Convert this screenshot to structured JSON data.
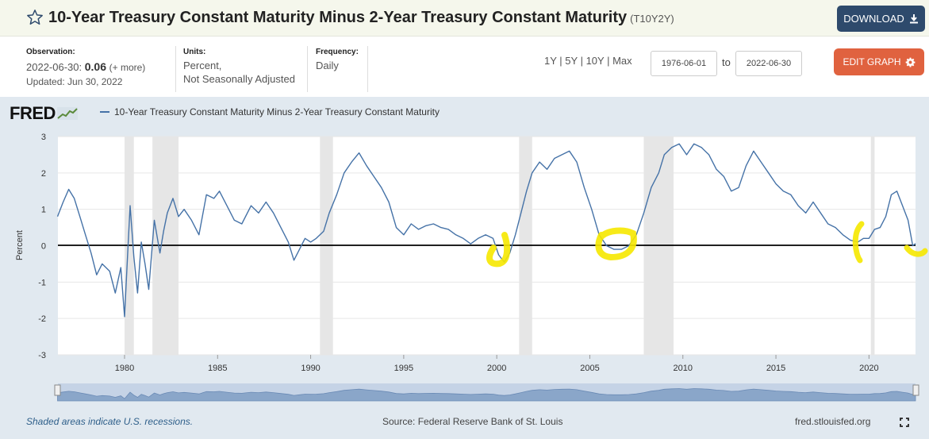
{
  "header": {
    "title": "10-Year Treasury Constant Maturity Minus 2-Year Treasury Constant Maturity",
    "series_code": "(T10Y2Y)",
    "download_label": "DOWNLOAD",
    "edit_label": "EDIT GRAPH"
  },
  "meta": {
    "observation_label": "Observation:",
    "observation_date": "2022-06-30:",
    "observation_value": "0.06",
    "more_link": "(+ more)",
    "updated": "Updated: Jun 30, 2022",
    "units_label": "Units:",
    "units_line1": "Percent,",
    "units_line2": "Not Seasonally Adjusted",
    "frequency_label": "Frequency:",
    "frequency_value": "Daily"
  },
  "range": {
    "buttons": [
      "1Y",
      "5Y",
      "10Y",
      "Max"
    ],
    "start": "1976-06-01",
    "to": "to",
    "end": "2022-06-30"
  },
  "footer": {
    "note": "Shaded areas indicate U.S. recessions.",
    "source": "Source: Federal Reserve Bank of St. Louis",
    "site": "fred.stlouisfed.org"
  },
  "logo": "FRED",
  "colors": {
    "line": "#4572a7",
    "recession": "#e6e6e6",
    "highlight": "#f6e800",
    "download": "#2e4a6c",
    "edit": "#e0623f"
  },
  "chart_data": {
    "type": "line",
    "title": "10-Year Treasury Constant Maturity Minus 2-Year Treasury Constant Maturity",
    "xlabel": "",
    "ylabel": "Percent",
    "xlim": [
      1976.42,
      2022.5
    ],
    "ylim": [
      -3,
      3
    ],
    "x_ticks": [
      1980,
      1985,
      1990,
      1995,
      2000,
      2005,
      2010,
      2015,
      2020
    ],
    "y_ticks": [
      3,
      2,
      1,
      0,
      -1,
      -2,
      -3
    ],
    "grid": true,
    "legend": "top-left",
    "recessions": [
      [
        1980.0,
        1980.5
      ],
      [
        1981.5,
        1982.9
      ],
      [
        1990.5,
        1991.2
      ],
      [
        2001.2,
        2001.9
      ],
      [
        2007.9,
        2009.5
      ],
      [
        2020.1,
        2020.3
      ]
    ],
    "series": [
      {
        "name": "10-Year Treasury Constant Maturity Minus 2-Year Treasury Constant Maturity",
        "x": [
          1976.4,
          1976.7,
          1977.0,
          1977.3,
          1977.6,
          1977.9,
          1978.2,
          1978.5,
          1978.8,
          1979.2,
          1979.5,
          1979.8,
          1980.0,
          1980.15,
          1980.3,
          1980.5,
          1980.7,
          1980.9,
          1981.1,
          1981.3,
          1981.6,
          1981.9,
          1982.1,
          1982.3,
          1982.6,
          1982.9,
          1983.2,
          1983.6,
          1984.0,
          1984.4,
          1984.8,
          1985.1,
          1985.5,
          1985.9,
          1986.3,
          1986.8,
          1987.2,
          1987.6,
          1988.0,
          1988.4,
          1988.8,
          1989.1,
          1989.4,
          1989.7,
          1990.0,
          1990.3,
          1990.7,
          1991.0,
          1991.4,
          1991.8,
          1992.2,
          1992.6,
          1993.0,
          1993.4,
          1993.8,
          1994.2,
          1994.6,
          1995.0,
          1995.4,
          1995.8,
          1996.2,
          1996.6,
          1997.0,
          1997.4,
          1997.8,
          1998.2,
          1998.6,
          1999.0,
          1999.4,
          1999.8,
          2000.1,
          2000.4,
          2000.7,
          2001.0,
          2001.3,
          2001.6,
          2001.9,
          2002.3,
          2002.7,
          2003.1,
          2003.5,
          2003.9,
          2004.3,
          2004.7,
          2005.1,
          2005.5,
          2005.9,
          2006.3,
          2006.7,
          2007.1,
          2007.5,
          2007.9,
          2008.3,
          2008.7,
          2009.0,
          2009.4,
          2009.8,
          2010.2,
          2010.6,
          2011.0,
          2011.4,
          2011.8,
          2012.2,
          2012.6,
          2013.0,
          2013.4,
          2013.8,
          2014.2,
          2014.6,
          2015.0,
          2015.4,
          2015.8,
          2016.2,
          2016.6,
          2017.0,
          2017.4,
          2017.8,
          2018.2,
          2018.6,
          2019.0,
          2019.4,
          2019.7,
          2020.0,
          2020.3,
          2020.6,
          2020.9,
          2021.2,
          2021.5,
          2021.8,
          2022.1,
          2022.35,
          2022.5
        ],
        "values": [
          0.8,
          1.2,
          1.55,
          1.3,
          0.8,
          0.3,
          -0.2,
          -0.8,
          -0.5,
          -0.7,
          -1.3,
          -0.6,
          -1.95,
          -0.4,
          1.1,
          -0.3,
          -1.3,
          0.1,
          -0.5,
          -1.2,
          0.7,
          -0.2,
          0.4,
          0.9,
          1.3,
          0.8,
          1.0,
          0.7,
          0.3,
          1.4,
          1.3,
          1.5,
          1.1,
          0.7,
          0.6,
          1.1,
          0.9,
          1.2,
          0.9,
          0.5,
          0.1,
          -0.4,
          -0.1,
          0.2,
          0.1,
          0.2,
          0.4,
          0.9,
          1.4,
          2.0,
          2.3,
          2.55,
          2.2,
          1.9,
          1.6,
          1.2,
          0.5,
          0.3,
          0.6,
          0.45,
          0.55,
          0.6,
          0.5,
          0.45,
          0.3,
          0.2,
          0.05,
          0.2,
          0.3,
          0.2,
          -0.25,
          -0.45,
          -0.2,
          0.3,
          0.9,
          1.5,
          2.0,
          2.3,
          2.1,
          2.4,
          2.5,
          2.6,
          2.3,
          1.6,
          1.0,
          0.3,
          0.0,
          -0.1,
          -0.1,
          0.0,
          0.3,
          0.9,
          1.6,
          2.0,
          2.5,
          2.7,
          2.8,
          2.5,
          2.8,
          2.7,
          2.5,
          2.1,
          1.9,
          1.5,
          1.6,
          2.2,
          2.6,
          2.3,
          2.0,
          1.7,
          1.5,
          1.4,
          1.1,
          0.9,
          1.2,
          0.9,
          0.6,
          0.5,
          0.3,
          0.15,
          0.1,
          0.2,
          0.2,
          0.45,
          0.5,
          0.8,
          1.4,
          1.5,
          1.1,
          0.7,
          0.0,
          0.06
        ]
      }
    ]
  }
}
